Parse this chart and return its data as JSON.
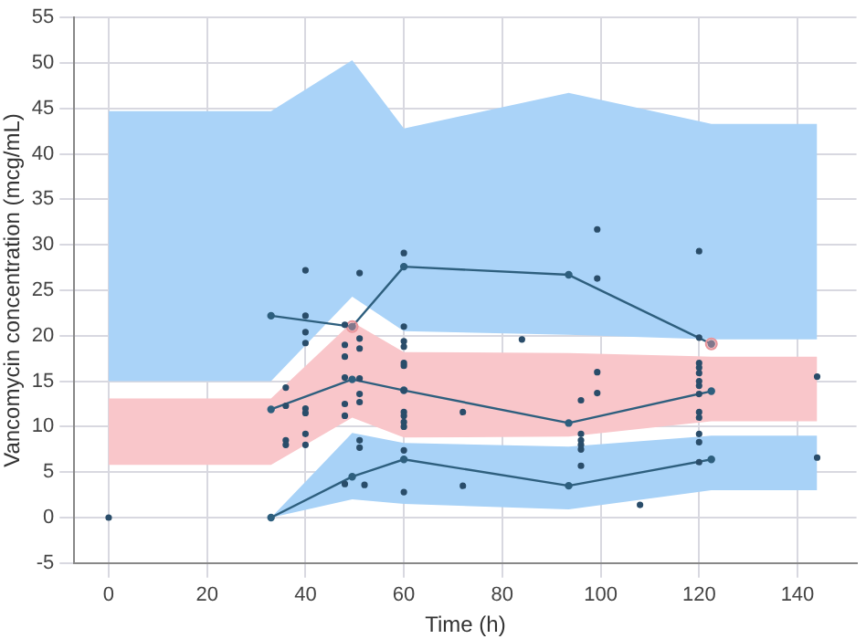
{
  "chart_data": {
    "type": "line",
    "xlabel": "Time (h)",
    "ylabel": "Vancomycin concentration (mcg/mL)",
    "xlim": [
      -7,
      152
    ],
    "xticks": [
      0,
      20,
      40,
      60,
      80,
      100,
      120,
      140
    ],
    "ylim": [
      -5,
      55
    ],
    "yticks": [
      -5,
      0,
      5,
      10,
      15,
      20,
      25,
      30,
      35,
      40,
      45,
      50,
      55
    ],
    "grid": true,
    "legend": false,
    "series": [
      {
        "type": "area",
        "color": "#aad3f8",
        "x": [
          0,
          33,
          49.5,
          60,
          93.5,
          122.5,
          144
        ],
        "values": [
          null,
          null,
          null,
          null,
          null,
          null,
          null
        ],
        "lower": [
          15,
          15,
          24.3,
          20.5,
          20.1,
          19.6,
          19.6
        ],
        "upper": [
          44.7,
          44.7,
          50.3,
          42.8,
          46.7,
          43.3,
          43.3
        ]
      },
      {
        "type": "area",
        "color": "#f9c6ca",
        "x": [
          0,
          33,
          49.5,
          60,
          93.5,
          122.5,
          144
        ],
        "values": [
          null,
          null,
          null,
          null,
          null,
          null,
          null
        ],
        "lower": [
          5.8,
          5.8,
          11,
          8.8,
          8.9,
          10.6,
          10.6
        ],
        "upper": [
          13.1,
          13.1,
          21.5,
          18.2,
          18.1,
          17.7,
          17.7
        ]
      },
      {
        "type": "area",
        "color": "#a8d2f7",
        "x": [
          33,
          49.5,
          60,
          93.5,
          122.5,
          144
        ],
        "values": [
          null,
          null,
          null,
          null,
          null,
          null
        ],
        "lower": [
          0,
          2,
          1.5,
          0.9,
          3,
          3
        ],
        "upper": [
          0,
          9.3,
          8.2,
          7.8,
          9,
          9
        ]
      },
      {
        "type": "line",
        "color": "#2e5f7e",
        "marker": "circle",
        "x": [
          33,
          49.5,
          60,
          93.5,
          122.5
        ],
        "values": [
          22.2,
          21,
          27.6,
          26.7,
          19.1
        ]
      },
      {
        "type": "line",
        "color": "#2e5f7e",
        "marker": "circle",
        "x": [
          33,
          49.5,
          60,
          93.5,
          122.5
        ],
        "values": [
          11.9,
          15.2,
          14,
          10.4,
          13.9
        ]
      },
      {
        "type": "line",
        "color": "#2e5f7e",
        "marker": "circle",
        "x": [
          33,
          49.5,
          60,
          93.5,
          122.5
        ],
        "values": [
          0,
          4.5,
          6.4,
          3.5,
          6.4
        ]
      },
      {
        "type": "scatter",
        "color": "#2a4d6a",
        "marker": "circle",
        "x": [
          0,
          36,
          36,
          36,
          36,
          40,
          40,
          40,
          40,
          40,
          40,
          40,
          40,
          48,
          48,
          48,
          48,
          48,
          48,
          48,
          51,
          51,
          51,
          51,
          51,
          51,
          51,
          51,
          52,
          60,
          60,
          60,
          60,
          60,
          60,
          60,
          60,
          60,
          60,
          60,
          60,
          60,
          72,
          72,
          84,
          96,
          96,
          96,
          96,
          96,
          96,
          99.3,
          99.3,
          99.3,
          99.3,
          108,
          120,
          120,
          120,
          120,
          120,
          120,
          120,
          120,
          120,
          120,
          120,
          120,
          120,
          144,
          144
        ],
        "values": [
          0,
          14.3,
          12.3,
          8.5,
          8,
          27.2,
          22.2,
          20.4,
          19.2,
          12,
          11.5,
          9.2,
          8,
          21.2,
          19,
          17.7,
          15.4,
          12.5,
          11.2,
          3.7,
          26.9,
          19.7,
          18.6,
          15.3,
          13.6,
          12.7,
          8.5,
          7.7,
          3.6,
          29.1,
          21,
          19.4,
          18.8,
          17,
          16.7,
          14,
          11.6,
          11.2,
          10.5,
          10,
          7.4,
          2.8,
          11.6,
          3.5,
          19.6,
          12.9,
          9.2,
          8.5,
          8,
          7.5,
          5.7,
          31.7,
          26.3,
          16,
          13.7,
          1.4,
          29.3,
          19.8,
          17,
          16.5,
          15.9,
          15,
          14.5,
          13.6,
          11.6,
          11,
          9.2,
          8.3,
          6.1,
          15.5,
          6.6
        ]
      },
      {
        "type": "scatter",
        "color": "#e8959b",
        "marker": "circle",
        "x": [
          49.5,
          122.5
        ],
        "values": [
          21,
          19.1
        ]
      }
    ]
  }
}
